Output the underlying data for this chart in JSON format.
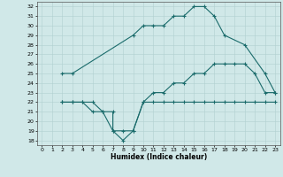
{
  "xlabel": "Humidex (Indice chaleur)",
  "xlim": [
    -0.5,
    23.5
  ],
  "ylim": [
    17.5,
    32.5
  ],
  "xticks": [
    0,
    1,
    2,
    3,
    4,
    5,
    6,
    7,
    8,
    9,
    10,
    11,
    12,
    13,
    14,
    15,
    16,
    17,
    18,
    19,
    20,
    21,
    22,
    23
  ],
  "yticks": [
    18,
    19,
    20,
    21,
    22,
    23,
    24,
    25,
    26,
    27,
    28,
    29,
    30,
    31,
    32
  ],
  "bg_color": "#d0e8e8",
  "line_color": "#1a6b6b",
  "grid_color": "#b0d0d0",
  "line1_x": [
    2,
    3,
    9,
    10,
    11,
    12,
    13,
    14,
    15,
    16,
    17,
    18,
    20,
    22,
    23
  ],
  "line1_y": [
    25,
    25,
    29,
    30,
    30,
    30,
    31,
    31,
    32,
    32,
    31,
    29,
    28,
    25,
    23
  ],
  "line2_x": [
    2,
    3,
    4,
    5,
    6,
    7,
    8,
    9,
    10,
    11,
    12,
    13,
    14,
    15,
    16,
    17,
    18,
    19,
    20,
    21,
    22,
    23
  ],
  "line2_y": [
    22,
    22,
    22,
    21,
    21,
    19,
    19,
    19,
    22,
    23,
    23,
    24,
    24,
    25,
    25,
    26,
    26,
    26,
    26,
    25,
    23,
    23
  ],
  "line3_x": [
    2,
    3,
    4,
    5,
    6,
    7,
    7,
    8,
    9,
    10,
    11,
    12,
    13,
    14,
    15,
    16,
    17,
    18,
    19,
    20,
    21,
    22,
    23
  ],
  "line3_y": [
    22,
    22,
    22,
    22,
    21,
    21,
    19,
    18,
    19,
    22,
    22,
    22,
    22,
    22,
    22,
    22,
    22,
    22,
    22,
    22,
    22,
    22,
    22
  ]
}
